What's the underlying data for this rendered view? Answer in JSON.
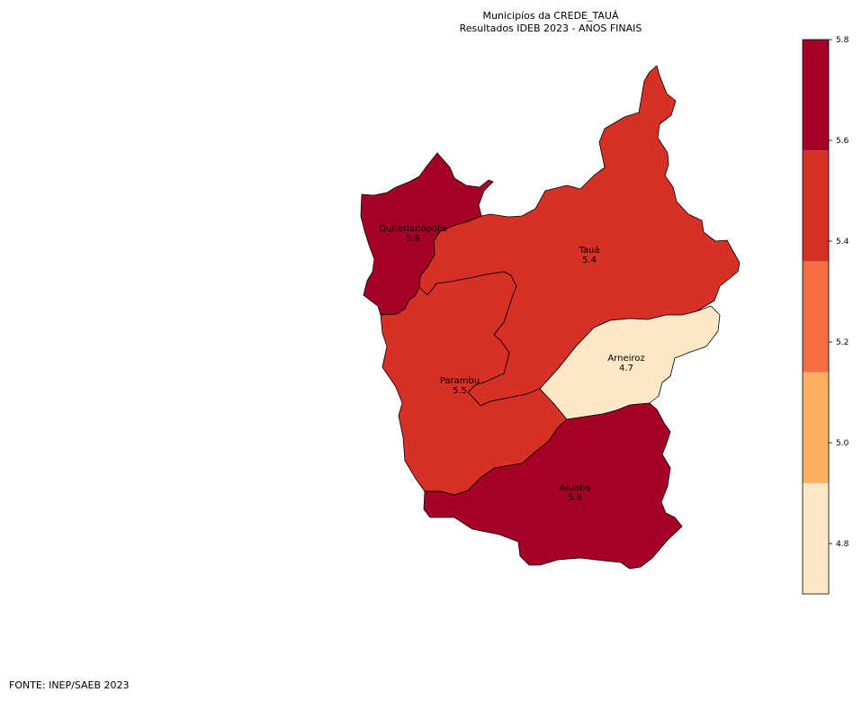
{
  "title_line_1": "Municipíos da CREDE_TAUÁ",
  "title_line_2": "Resultados IDEB 2023 - ANOS FINAIS",
  "source": "FONTE: INEP/SAEB 2023",
  "colorbar": {
    "min": 4.7,
    "max": 5.8,
    "ticks": [
      "4.8",
      "5.0",
      "5.2",
      "5.4",
      "5.6",
      "5.8"
    ],
    "bins": [
      {
        "from": 4.7,
        "to": 4.92,
        "color": "#fee8c8"
      },
      {
        "from": 4.92,
        "to": 5.14,
        "color": "#fdae61"
      },
      {
        "from": 5.14,
        "to": 5.36,
        "color": "#f46d43"
      },
      {
        "from": 5.36,
        "to": 5.58,
        "color": "#d73027"
      },
      {
        "from": 5.58,
        "to": 5.8,
        "color": "#a50026"
      }
    ]
  },
  "municipalities": [
    {
      "name": "Quiterianópolis",
      "value_label": "5.6",
      "color": "#a50026"
    },
    {
      "name": "Tauá",
      "value_label": "5.4",
      "color": "#d73027"
    },
    {
      "name": "Arneiroz",
      "value_label": "4.7",
      "color": "#fee8c8"
    },
    {
      "name": "Parambu",
      "value_label": "5.5",
      "color": "#d73027"
    },
    {
      "name": "Aiuaba",
      "value_label": "5.8",
      "color": "#a50026"
    }
  ]
}
